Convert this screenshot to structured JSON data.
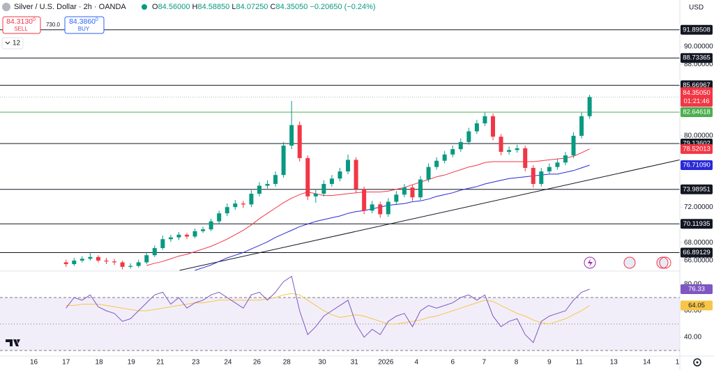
{
  "header": {
    "title": "Silver / U.S. Dollar · 2h · OANDA",
    "ohlc": [
      {
        "k": "O",
        "v": "84.56000"
      },
      {
        "k": "H",
        "v": "84.58850"
      },
      {
        "k": "L",
        "v": "84.07250"
      },
      {
        "k": "C",
        "v": "84.35050"
      }
    ],
    "change": "−0.20650 (−0.24%)",
    "sell": {
      "price": "84.3130",
      "sup": "0",
      "label": "SELL"
    },
    "spread": "730.0",
    "buy": {
      "price": "84.3860",
      "sup": "0",
      "label": "BUY"
    },
    "indicators": "12",
    "currency": "USD"
  },
  "chart_data": [
    {
      "type": "candlestick",
      "open": [
        65.8,
        65.6,
        66.0,
        66.2,
        66.4,
        66.0,
        65.9,
        65.8,
        65.3,
        65.4,
        65.8,
        66.6,
        67.4,
        68.4,
        68.6,
        68.9,
        68.7,
        69.3,
        69.5,
        70.4,
        71.3,
        72.0,
        72.4,
        72.3,
        73.5,
        74.4,
        74.6,
        75.6,
        78.9,
        81.2,
        77.5,
        73.2,
        73.5,
        74.6,
        75.2,
        76.0,
        77.3,
        74.0,
        71.6,
        72.3,
        71.2,
        72.6,
        73.4,
        74.2,
        73.1,
        75.1,
        76.5,
        77.2,
        77.9,
        78.5,
        79.3,
        80.5,
        81.4,
        82.2,
        79.9,
        78.2,
        78.4,
        78.6,
        76.4,
        74.6,
        76.0,
        76.5,
        77.0,
        77.8,
        80.0,
        82.2
      ],
      "high": [
        66.1,
        66.3,
        66.5,
        66.9,
        66.6,
        66.3,
        66.2,
        66.0,
        65.7,
        66.1,
        66.9,
        67.7,
        68.8,
        68.9,
        69.2,
        69.1,
        69.6,
        69.8,
        70.7,
        71.6,
        72.4,
        72.8,
        72.7,
        73.9,
        74.8,
        75.0,
        76.0,
        79.3,
        83.9,
        81.6,
        77.8,
        74.0,
        75.0,
        75.6,
        76.4,
        77.9,
        77.6,
        74.3,
        72.7,
        72.6,
        73.0,
        73.8,
        74.6,
        74.5,
        75.5,
        76.9,
        77.6,
        78.3,
        78.9,
        79.7,
        80.9,
        81.8,
        82.6,
        82.5,
        80.2,
        78.8,
        79.0,
        78.9,
        76.7,
        76.4,
        76.9,
        77.4,
        78.2,
        80.4,
        82.6,
        84.6
      ],
      "low": [
        65.3,
        65.4,
        65.8,
        66.0,
        65.8,
        65.6,
        65.5,
        65.0,
        65.1,
        65.2,
        65.6,
        66.4,
        67.2,
        68.1,
        68.3,
        68.4,
        68.5,
        69.1,
        69.3,
        70.1,
        71.0,
        71.7,
        71.9,
        72.0,
        73.2,
        74.1,
        74.3,
        75.3,
        78.5,
        77.1,
        72.8,
        72.5,
        73.2,
        74.3,
        74.9,
        75.7,
        73.6,
        71.2,
        71.3,
        70.8,
        70.9,
        72.3,
        73.1,
        72.7,
        72.8,
        74.8,
        76.2,
        76.9,
        77.6,
        78.2,
        79.0,
        80.2,
        81.1,
        79.5,
        77.8,
        77.9,
        78.1,
        76.0,
        74.2,
        74.3,
        75.7,
        76.2,
        76.7,
        77.5,
        79.7,
        81.9
      ],
      "close": [
        65.6,
        66.0,
        66.2,
        66.4,
        66.0,
        65.9,
        65.8,
        65.3,
        65.4,
        65.8,
        66.6,
        67.4,
        68.4,
        68.6,
        68.9,
        68.7,
        69.3,
        69.5,
        70.4,
        71.3,
        72.0,
        72.4,
        72.3,
        73.5,
        74.4,
        74.6,
        75.6,
        78.9,
        81.2,
        77.5,
        73.2,
        73.5,
        74.6,
        75.2,
        76.0,
        77.3,
        74.0,
        71.6,
        72.3,
        71.2,
        72.6,
        73.4,
        74.2,
        73.1,
        75.1,
        76.5,
        77.2,
        77.9,
        78.5,
        79.3,
        80.5,
        81.4,
        82.2,
        79.9,
        78.2,
        78.4,
        78.6,
        76.4,
        74.6,
        76.0,
        76.5,
        77.0,
        77.8,
        80.0,
        82.2,
        84.3505
      ],
      "up_color": "#089981",
      "down_color": "#f23645",
      "series": [
        {
          "color": "#f23645",
          "end_label": "78.52013",
          "values": [
            null,
            null,
            null,
            null,
            null,
            null,
            null,
            null,
            null,
            null,
            65.45,
            65.7,
            65.9,
            66.2,
            66.5,
            66.7,
            67.0,
            67.3,
            67.6,
            68.0,
            68.4,
            68.9,
            69.4,
            70.0,
            70.7,
            71.3,
            71.9,
            72.5,
            73.0,
            73.4,
            73.7,
            73.5,
            73.3,
            73.3,
            73.4,
            73.5,
            73.6,
            73.7,
            73.7,
            73.7,
            73.8,
            74.0,
            74.2,
            74.5,
            74.8,
            75.1,
            75.4,
            75.6,
            75.9,
            76.2,
            76.5,
            76.7,
            77.0,
            77.1,
            77.1,
            77.1,
            77.1,
            77.1,
            77.1,
            77.2,
            77.3,
            77.4,
            77.5,
            77.7,
            78.1,
            78.52013
          ]
        },
        {
          "color": "#2929d6",
          "end_label": "76.71090",
          "values": [
            null,
            null,
            null,
            null,
            null,
            null,
            null,
            null,
            null,
            null,
            null,
            null,
            null,
            null,
            null,
            null,
            64.9,
            65.2,
            65.5,
            65.9,
            66.3,
            66.6,
            66.9,
            67.3,
            67.7,
            68.1,
            68.6,
            69.0,
            69.4,
            69.8,
            70.1,
            70.4,
            70.6,
            70.8,
            71.0,
            71.3,
            71.5,
            71.6,
            71.8,
            72.0,
            72.2,
            72.3,
            72.4,
            72.6,
            72.7,
            72.9,
            73.2,
            73.4,
            73.6,
            73.9,
            74.1,
            74.3,
            74.6,
            74.8,
            75.0,
            75.2,
            75.3,
            75.4,
            75.5,
            75.6,
            75.7,
            75.7,
            75.9,
            76.1,
            76.4,
            76.7109
          ]
        }
      ],
      "hlines": [
        {
          "value": 91.89508,
          "color": "#131722"
        },
        {
          "value": 88.73365,
          "color": "#131722"
        },
        {
          "value": 85.66967,
          "color": "#131722"
        },
        {
          "value": 82.64618,
          "color": "#4caf50"
        },
        {
          "value": 79.13602,
          "color": "#131722"
        },
        {
          "value": 73.98951,
          "color": "#131722"
        },
        {
          "value": 70.11935,
          "color": "#131722"
        },
        {
          "value": 66.89129,
          "color": "#131722"
        }
      ],
      "trendline": {
        "x": [
          14.1,
          76.2
        ],
        "y": [
          64.9,
          77.3
        ],
        "color": "#131722"
      },
      "last_price": {
        "value": 84.3505,
        "label": "84.35050",
        "countdown": "01:21:46",
        "color": "#f23645"
      },
      "ylim": [
        64.9,
        95.24
      ],
      "yticks": [
        {
          "value": 66,
          "label": "66.00000"
        },
        {
          "value": 68,
          "label": "68.00000"
        },
        {
          "value": 72,
          "label": "72.00000"
        },
        {
          "value": 80,
          "label": "80.00000"
        },
        {
          "value": 88,
          "label": "88.00000"
        },
        {
          "value": 90,
          "label": "90.00000"
        }
      ],
      "xlim": [
        -8.2,
        76.2
      ],
      "xticks": [
        {
          "value": -4.0,
          "label": "16"
        },
        {
          "value": 0,
          "label": "17"
        },
        {
          "value": 4.1,
          "label": "18"
        },
        {
          "value": 8.1,
          "label": "19"
        },
        {
          "value": 11.7,
          "label": "21"
        },
        {
          "value": 16.1,
          "label": "23"
        },
        {
          "value": 20.1,
          "label": "24"
        },
        {
          "value": 23.7,
          "label": "26"
        },
        {
          "value": 27.4,
          "label": "28"
        },
        {
          "value": 31.8,
          "label": "30"
        },
        {
          "value": 35.8,
          "label": "31"
        },
        {
          "value": 39.7,
          "label": "2026"
        },
        {
          "value": 43.5,
          "label": "4"
        },
        {
          "value": 48.0,
          "label": "6"
        },
        {
          "value": 51.9,
          "label": "7"
        },
        {
          "value": 55.9,
          "label": "8"
        },
        {
          "value": 60.0,
          "label": "9"
        },
        {
          "value": 63.7,
          "label": "11"
        },
        {
          "value": 68.0,
          "label": "13"
        },
        {
          "value": 72.1,
          "label": "14"
        },
        {
          "value": 75.9,
          "label": "1"
        }
      ],
      "grid": false
    },
    {
      "type": "line",
      "series": [
        {
          "color": "#7e57c2",
          "values": [
            62,
            70,
            68,
            72,
            63,
            60,
            58,
            52,
            54,
            60,
            66,
            72,
            74,
            65,
            70,
            62,
            66,
            68,
            72,
            74,
            70,
            66,
            62,
            72,
            74,
            68,
            74,
            82,
            86,
            60,
            42,
            48,
            56,
            60,
            64,
            68,
            50,
            40,
            46,
            42,
            52,
            56,
            58,
            48,
            60,
            64,
            62,
            64,
            66,
            70,
            72,
            68,
            72,
            56,
            48,
            52,
            54,
            42,
            36,
            52,
            56,
            58,
            60,
            68,
            74,
            76.33
          ]
        },
        {
          "color": "#f7c548",
          "values": [
            64,
            64,
            65,
            65,
            65,
            64,
            63,
            62,
            61,
            60,
            60,
            61,
            62,
            63,
            64,
            65,
            66,
            66,
            67,
            68,
            68,
            68,
            68,
            68,
            68,
            69,
            70,
            72,
            73,
            72,
            68,
            64,
            60,
            57,
            55,
            56,
            57,
            56,
            54,
            52,
            50,
            50,
            51,
            52,
            53,
            55,
            56,
            58,
            60,
            62,
            64,
            66,
            68,
            67,
            64,
            61,
            58,
            56,
            53,
            51,
            50,
            52,
            54,
            57,
            60,
            64.05
          ]
        }
      ],
      "bands": [
        70,
        50,
        30
      ],
      "ylim": [
        26.3,
        89.5
      ],
      "yticks": [
        {
          "value": 40,
          "label": "40.00"
        },
        {
          "value": 60,
          "label": "60.00"
        },
        {
          "value": 80,
          "label": "80.00"
        }
      ]
    }
  ]
}
